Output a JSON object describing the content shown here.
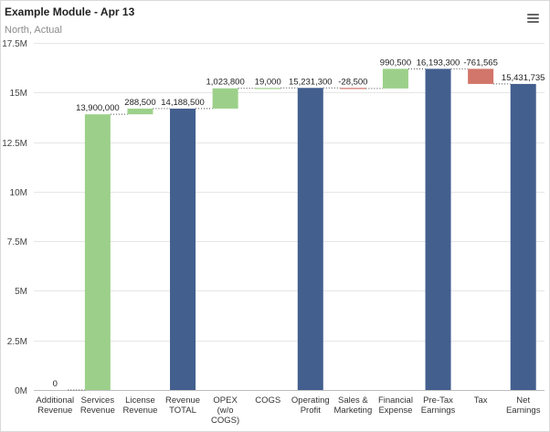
{
  "header": {
    "title": "Example Module - Apr 13",
    "subtitle": "North, Actual"
  },
  "menu_icon": "hamburger-menu-icon",
  "colors": {
    "increase": "#9cd08a",
    "decrease": "#d2756a",
    "total": "#435f8e",
    "grid": "#e6e6e6",
    "connector": "#444444"
  },
  "chart_data": {
    "type": "bar",
    "subtype": "waterfall",
    "title": "Example Module - Apr 13",
    "subtitle": "North, Actual",
    "xlabel": "",
    "ylabel": "",
    "ylim": [
      0,
      17500000
    ],
    "grid": true,
    "legend": "none",
    "yticks": [
      {
        "value": 0,
        "label": "0M"
      },
      {
        "value": 2500000,
        "label": "2.5M"
      },
      {
        "value": 5000000,
        "label": "5M"
      },
      {
        "value": 7500000,
        "label": "7.5M"
      },
      {
        "value": 10000000,
        "label": "10M"
      },
      {
        "value": 12500000,
        "label": "12.5M"
      },
      {
        "value": 15000000,
        "label": "15M"
      },
      {
        "value": 17500000,
        "label": "17.5M"
      }
    ],
    "categories": [
      [
        "Additional",
        "Revenue"
      ],
      [
        "Services",
        "Revenue"
      ],
      [
        "License",
        "Revenue"
      ],
      [
        "Revenue",
        "TOTAL"
      ],
      [
        "OPEX",
        "(w/o",
        "COGS)"
      ],
      [
        "COGS"
      ],
      [
        "Operating",
        "Profit"
      ],
      [
        "Sales &",
        "Marketing"
      ],
      [
        "Financial",
        "Expense"
      ],
      [
        "Pre-Tax",
        "Earnings"
      ],
      [
        "Tax"
      ],
      [
        "Net",
        "Earnings"
      ]
    ],
    "bars": [
      {
        "kind": "delta",
        "value": 0,
        "label": "0"
      },
      {
        "kind": "delta",
        "value": 13900000,
        "label": "13,900,000"
      },
      {
        "kind": "delta",
        "value": 288500,
        "label": "288,500"
      },
      {
        "kind": "total",
        "value": 14188500,
        "label": "14,188,500"
      },
      {
        "kind": "delta",
        "value": 1023800,
        "label": "1,023,800"
      },
      {
        "kind": "delta",
        "value": 19000,
        "label": "19,000"
      },
      {
        "kind": "total",
        "value": 15231300,
        "label": "15,231,300"
      },
      {
        "kind": "delta",
        "value": -28500,
        "label": "-28,500"
      },
      {
        "kind": "delta",
        "value": 990500,
        "label": "990,500"
      },
      {
        "kind": "total",
        "value": 16193300,
        "label": "16,193,300"
      },
      {
        "kind": "delta",
        "value": -761565,
        "label": "-761,565"
      },
      {
        "kind": "total",
        "value": 15431735,
        "label": "15,431,735"
      }
    ]
  }
}
